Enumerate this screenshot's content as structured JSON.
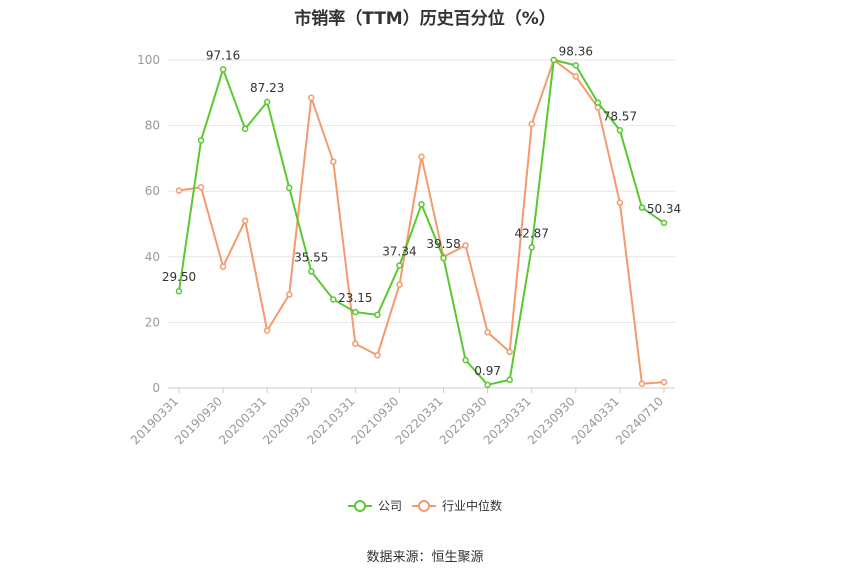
{
  "chart_data": {
    "type": "line",
    "title": "市销率（TTM）历史百分位（%）",
    "source": "数据来源：恒生聚源",
    "ylim": [
      0,
      100
    ],
    "yticks": [
      0,
      20,
      40,
      60,
      80,
      100
    ],
    "grid": true,
    "legend_position": "bottom",
    "x": [
      "20190331",
      "20190630",
      "20190930",
      "20191231",
      "20200331",
      "20200630",
      "20200930",
      "20201231",
      "20210331",
      "20210630",
      "20210930",
      "20211231",
      "20220331",
      "20220630",
      "20220930",
      "20221231",
      "20230331",
      "20230630",
      "20230930",
      "20231231",
      "20240331",
      "20240630",
      "20240710"
    ],
    "xticks": [
      "20190331",
      "20190930",
      "20200331",
      "20200930",
      "20210331",
      "20210930",
      "20220331",
      "20220930",
      "20230331",
      "20230930",
      "20240331",
      "20240710"
    ],
    "series": [
      {
        "name": "公司",
        "color": "#5ac830",
        "values": [
          29.5,
          75.5,
          97.16,
          79.0,
          87.23,
          61.0,
          35.55,
          27.0,
          23.15,
          22.3,
          37.34,
          56.0,
          39.58,
          8.5,
          0.97,
          2.5,
          42.87,
          100.0,
          98.36,
          87.0,
          78.57,
          55.0,
          50.34
        ],
        "labels": {
          "0": "29.50",
          "2": "97.16",
          "4": "87.23",
          "6": "35.55",
          "8": "23.15",
          "10": "37.34",
          "12": "39.58",
          "14": "0.97",
          "16": "42.87",
          "18": "98.36",
          "20": "78.57",
          "22": "50.34"
        }
      },
      {
        "name": "行业中位数",
        "color": "#f59a6f",
        "values": [
          60.2,
          61.2,
          37.0,
          51.0,
          17.5,
          28.5,
          88.5,
          69.0,
          13.5,
          10.0,
          31.5,
          70.5,
          40.0,
          43.5,
          17.0,
          11.0,
          80.5,
          100.0,
          95.0,
          85.5,
          56.5,
          1.3,
          1.8
        ],
        "labels": {}
      }
    ]
  }
}
